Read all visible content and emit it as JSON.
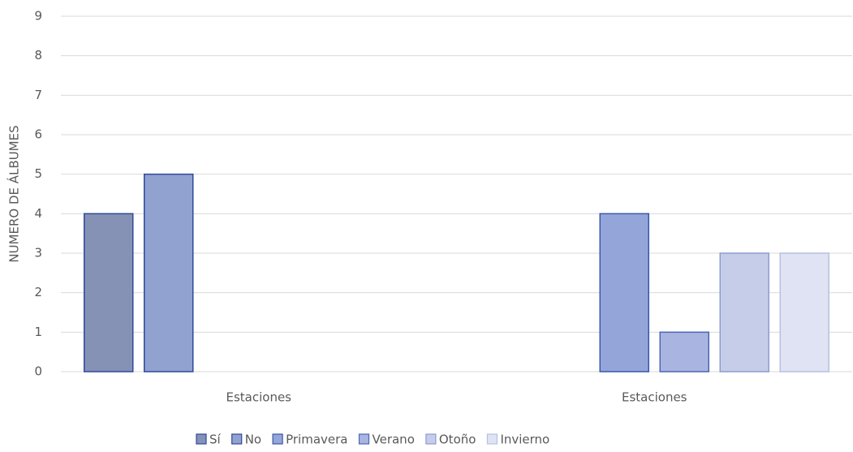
{
  "chart_data": {
    "type": "bar",
    "y_label": "NUMERO DE ÁLBUMES",
    "categories": [
      "Estaciones",
      "Estaciones"
    ],
    "series": [
      {
        "name": "Sí",
        "color": "#8592b6",
        "values": [
          4,
          null
        ]
      },
      {
        "name": "No",
        "color": "#91a1d0",
        "values": [
          5,
          null
        ]
      },
      {
        "name": "Primavera",
        "color": "#94a5da",
        "values": [
          null,
          4
        ]
      },
      {
        "name": "Verano",
        "color": "#a9b5e0",
        "values": [
          null,
          1
        ]
      },
      {
        "name": "Otoño",
        "color": "#c6cde9",
        "values": [
          null,
          3
        ]
      },
      {
        "name": "Invierno",
        "color": "#dfe3f3",
        "values": [
          null,
          3
        ]
      }
    ],
    "ylim": [
      0,
      9
    ],
    "yticks": [
      0,
      1,
      2,
      3,
      4,
      5,
      6,
      7,
      8,
      9
    ],
    "grid": true,
    "legend": "bottom"
  }
}
